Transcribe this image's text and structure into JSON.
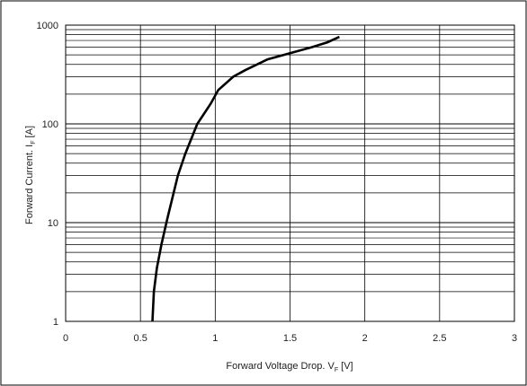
{
  "chart_data": {
    "type": "line",
    "xlabel": "Forward Voltage Drop. V",
    "xlabel_sub": "F",
    "xlabel_unit": " [V]",
    "ylabel": "Forward Current. I",
    "ylabel_sub": "F",
    "ylabel_unit": " [A]",
    "xlim": [
      0,
      3
    ],
    "ylim": [
      1,
      1000
    ],
    "yscale": "log",
    "grid": true,
    "legend": "none",
    "x_ticks": [
      "0",
      "0.5",
      "1",
      "1.5",
      "2",
      "2.5",
      "3"
    ],
    "y_ticks": [
      "1",
      "10",
      "100",
      "1000"
    ],
    "series": [
      {
        "x": [
          0.58,
          0.59,
          0.61,
          0.64,
          0.68,
          0.75,
          0.8,
          0.88,
          0.97,
          1.02,
          1.12,
          1.2,
          1.35,
          1.5,
          1.65,
          1.75,
          1.83
        ],
        "y": [
          1,
          2,
          3.5,
          6,
          11,
          30,
          50,
          100,
          160,
          220,
          300,
          350,
          450,
          520,
          600,
          670,
          760
        ]
      }
    ],
    "color": "#000000"
  }
}
